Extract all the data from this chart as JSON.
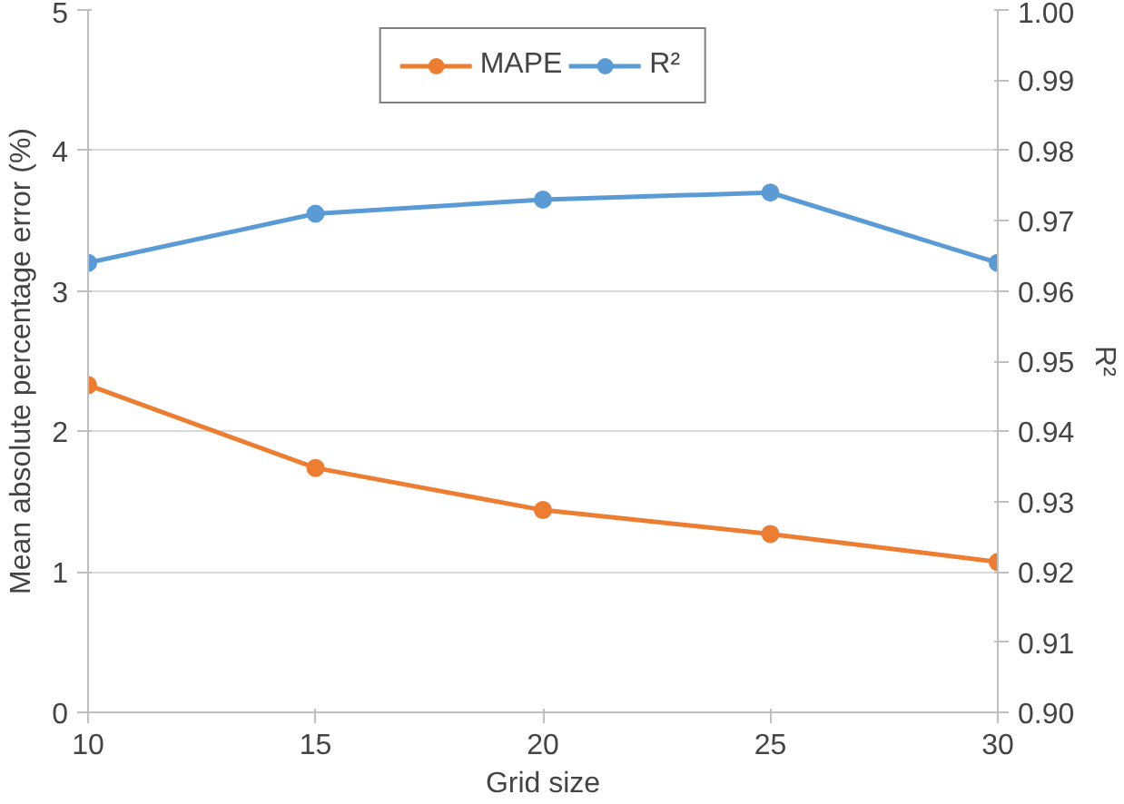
{
  "chart_data": {
    "type": "line",
    "xlabel": "Grid size",
    "ylabel": "Mean absolute percentage error (%)",
    "y2label": "R²",
    "x": [
      10,
      15,
      20,
      25,
      30
    ],
    "series": [
      {
        "name": "MAPE",
        "color": "#ed7d31",
        "values": [
          2.33,
          1.74,
          1.44,
          1.27,
          1.07
        ]
      },
      {
        "name": "R²",
        "color": "#5b9bd5",
        "values": [
          0.964,
          0.971,
          0.973,
          0.974,
          0.964
        ],
        "axis": "y2"
      }
    ],
    "xlim": [
      10,
      30
    ],
    "xticks": [
      10,
      15,
      20,
      25,
      30
    ],
    "ylim": [
      0,
      5
    ],
    "yticks": [
      0,
      1,
      2,
      3,
      4,
      5
    ],
    "y2lim": [
      0.9,
      1.0
    ],
    "y2ticks": [
      {
        "value": 0.9,
        "label": "0.90"
      },
      0.91,
      0.92,
      0.93,
      0.94,
      0.95,
      0.96,
      0.97,
      0.98,
      0.99,
      {
        "value": 1.0,
        "label": "1.00"
      }
    ],
    "grid": "y",
    "legend": "top",
    "marker": "circle",
    "line_style": "solid"
  }
}
